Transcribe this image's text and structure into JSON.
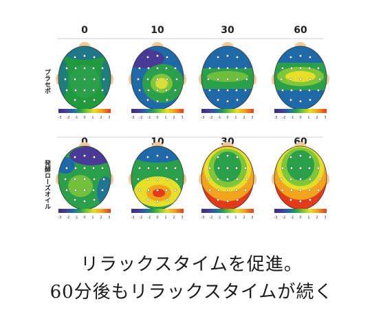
{
  "columns": [
    "0",
    "10",
    "30",
    "60"
  ],
  "rows": [
    {
      "label": "プラセボ",
      "maps": [
        "placebo-0",
        "placebo-10",
        "placebo-30",
        "placebo-60"
      ]
    },
    {
      "label": "発酵ローズオイル",
      "maps": [
        "rose-0",
        "rose-10",
        "rose-30",
        "rose-60"
      ]
    }
  ],
  "colorbar": {
    "ticks": [
      "-3",
      "-2",
      "-1",
      "0",
      "1",
      "2",
      "3"
    ],
    "colors": [
      "#3b2a80",
      "#4a3a98",
      "#1e6aa8",
      "#2aa04a",
      "#7fc638",
      "#e7de2a",
      "#f2a51c",
      "#e33a1a"
    ]
  },
  "captions": [
    "リラックスタイムを促進。",
    "60分後もリラックスタイムが続く"
  ]
}
